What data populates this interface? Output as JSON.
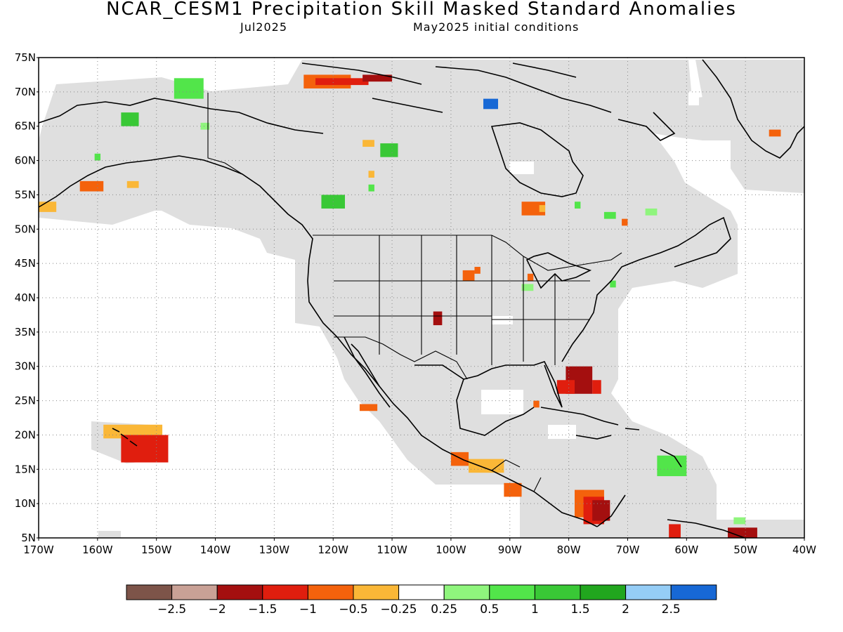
{
  "header": {
    "title": "NCAR_CESM1 Precipitation Skill Masked Standard Anomalies",
    "valid_month": "Jul2025",
    "init": "May2025 initial conditions"
  },
  "axes": {
    "lat_labels": [
      "75N",
      "70N",
      "65N",
      "60N",
      "55N",
      "50N",
      "45N",
      "40N",
      "35N",
      "30N",
      "25N",
      "20N",
      "15N",
      "10N",
      "5N"
    ],
    "lat_values": [
      75,
      70,
      65,
      60,
      55,
      50,
      45,
      40,
      35,
      30,
      25,
      20,
      15,
      10,
      5
    ],
    "lon_labels": [
      "170W",
      "160W",
      "150W",
      "140W",
      "130W",
      "120W",
      "110W",
      "100W",
      "90W",
      "80W",
      "70W",
      "60W",
      "50W",
      "40W"
    ],
    "lon_values": [
      -170,
      -160,
      -150,
      -140,
      -130,
      -120,
      -110,
      -100,
      -90,
      -80,
      -70,
      -60,
      -50,
      -40
    ],
    "lon_range": [
      -170,
      -40
    ],
    "lat_range": [
      5,
      75
    ],
    "grid": "dotted"
  },
  "colorbar": {
    "colors": [
      "#7d5449",
      "#c9a196",
      "#a40f0f",
      "#e01e0e",
      "#f4620c",
      "#fab737",
      "#ffffff",
      "#8ff57d",
      "#52e54a",
      "#39c836",
      "#21a61e",
      "#95cdf6",
      "#1768d5"
    ],
    "labels": [
      "−2.5",
      "−2",
      "−1.5",
      "−1",
      "−0.5",
      "−0.25",
      "0.25",
      "0.5",
      "1",
      "1.5",
      "2",
      "2.5"
    ]
  },
  "colors": {
    "mask": "#dfdfdf",
    "coast": "#000000"
  },
  "anomaly_patches": [
    {
      "lon": [
        -125,
        -117
      ],
      "lat": [
        70.5,
        72.5
      ],
      "cls": "orange"
    },
    {
      "lon": [
        -123,
        -114
      ],
      "lat": [
        71,
        72
      ],
      "cls": "red"
    },
    {
      "lon": [
        -115,
        -110
      ],
      "lat": [
        71.5,
        72.5
      ],
      "cls": "dred"
    },
    {
      "lon": [
        -147,
        -142
      ],
      "lat": [
        69,
        72
      ],
      "cls": "green"
    },
    {
      "lon": [
        -156,
        -153
      ],
      "lat": [
        65,
        67
      ],
      "cls": "dgreen"
    },
    {
      "lon": [
        -142.5,
        -141
      ],
      "lat": [
        64.5,
        65.5
      ],
      "cls": "lgreen"
    },
    {
      "lon": [
        -160.5,
        -159.5
      ],
      "lat": [
        60,
        61
      ],
      "cls": "green"
    },
    {
      "lon": [
        -163,
        -159
      ],
      "lat": [
        55.5,
        57
      ],
      "cls": "orange"
    },
    {
      "lon": [
        -170,
        -167
      ],
      "lat": [
        52.5,
        54
      ],
      "cls": "yorange"
    },
    {
      "lon": [
        -155,
        -153
      ],
      "lat": [
        56,
        57
      ],
      "cls": "yorange"
    },
    {
      "lon": [
        -122,
        -118
      ],
      "lat": [
        53,
        55
      ],
      "cls": "dgreen"
    },
    {
      "lon": [
        -112,
        -109
      ],
      "lat": [
        60.5,
        62.5
      ],
      "cls": "dgreen"
    },
    {
      "lon": [
        -115,
        -113
      ],
      "lat": [
        62,
        63
      ],
      "cls": "yorange"
    },
    {
      "lon": [
        -114,
        -113
      ],
      "lat": [
        57.5,
        58.5
      ],
      "cls": "yorange"
    },
    {
      "lon": [
        -114,
        -113
      ],
      "lat": [
        55.5,
        56.5
      ],
      "cls": "green"
    },
    {
      "lon": [
        -94.5,
        -92
      ],
      "lat": [
        67.5,
        69
      ],
      "cls": "blue"
    },
    {
      "lon": [
        -88,
        -84
      ],
      "lat": [
        52,
        54
      ],
      "cls": "orange"
    },
    {
      "lon": [
        -85,
        -84
      ],
      "lat": [
        52.5,
        53.5
      ],
      "cls": "yorange"
    },
    {
      "lon": [
        -74,
        -72
      ],
      "lat": [
        51.5,
        52.5
      ],
      "cls": "green"
    },
    {
      "lon": [
        -67,
        -65
      ],
      "lat": [
        52,
        53
      ],
      "cls": "lgreen"
    },
    {
      "lon": [
        -79,
        -78
      ],
      "lat": [
        53,
        54
      ],
      "cls": "green"
    },
    {
      "lon": [
        -71,
        -70
      ],
      "lat": [
        50.5,
        51.5
      ],
      "cls": "orange"
    },
    {
      "lon": [
        -46,
        -44
      ],
      "lat": [
        63.5,
        64.5
      ],
      "cls": "orange"
    },
    {
      "lon": [
        -98,
        -96
      ],
      "lat": [
        42.5,
        44
      ],
      "cls": "orange"
    },
    {
      "lon": [
        -96,
        -95
      ],
      "lat": [
        43.5,
        44.5
      ],
      "cls": "orange"
    },
    {
      "lon": [
        -87,
        -86
      ],
      "lat": [
        42.5,
        43.5
      ],
      "cls": "orange"
    },
    {
      "lon": [
        -88,
        -86
      ],
      "lat": [
        41,
        42
      ],
      "cls": "lgreen"
    },
    {
      "lon": [
        -73,
        -72
      ],
      "lat": [
        41.5,
        42.5
      ],
      "cls": "green"
    },
    {
      "lon": [
        -103,
        -101.5
      ],
      "lat": [
        36,
        38
      ],
      "cls": "dred"
    },
    {
      "lon": [
        -80.5,
        -76
      ],
      "lat": [
        26,
        30
      ],
      "cls": "dred"
    },
    {
      "lon": [
        -82,
        -79
      ],
      "lat": [
        26,
        28
      ],
      "cls": "red"
    },
    {
      "lon": [
        -76,
        -74.5
      ],
      "lat": [
        26,
        28
      ],
      "cls": "red"
    },
    {
      "lon": [
        -86,
        -85
      ],
      "lat": [
        24,
        25
      ],
      "cls": "orange"
    },
    {
      "lon": [
        -115.5,
        -112.5
      ],
      "lat": [
        23.5,
        24.5
      ],
      "cls": "orange"
    },
    {
      "lon": [
        -159,
        -149
      ],
      "lat": [
        19.5,
        21.5
      ],
      "cls": "yorange"
    },
    {
      "lon": [
        -156,
        -148
      ],
      "lat": [
        16,
        20
      ],
      "cls": "red"
    },
    {
      "lon": [
        -100,
        -97
      ],
      "lat": [
        15.5,
        17.5
      ],
      "cls": "orange"
    },
    {
      "lon": [
        -97,
        -91
      ],
      "lat": [
        14.5,
        16.5
      ],
      "cls": "yorange"
    },
    {
      "lon": [
        -91,
        -88
      ],
      "lat": [
        11,
        13
      ],
      "cls": "orange"
    },
    {
      "lon": [
        -79,
        -74
      ],
      "lat": [
        8,
        12
      ],
      "cls": "orange"
    },
    {
      "lon": [
        -77.5,
        -74
      ],
      "lat": [
        7,
        11
      ],
      "cls": "red"
    },
    {
      "lon": [
        -76,
        -73
      ],
      "lat": [
        7.5,
        10.5
      ],
      "cls": "dred"
    },
    {
      "lon": [
        -65,
        -60
      ],
      "lat": [
        14,
        17
      ],
      "cls": "green"
    },
    {
      "lon": [
        -63,
        -61
      ],
      "lat": [
        5,
        7
      ],
      "cls": "red"
    },
    {
      "lon": [
        -53,
        -48
      ],
      "lat": [
        5,
        6.5
      ],
      "cls": "dred"
    },
    {
      "lon": [
        -52,
        -50
      ],
      "lat": [
        7,
        8
      ],
      "cls": "lgreen"
    }
  ]
}
